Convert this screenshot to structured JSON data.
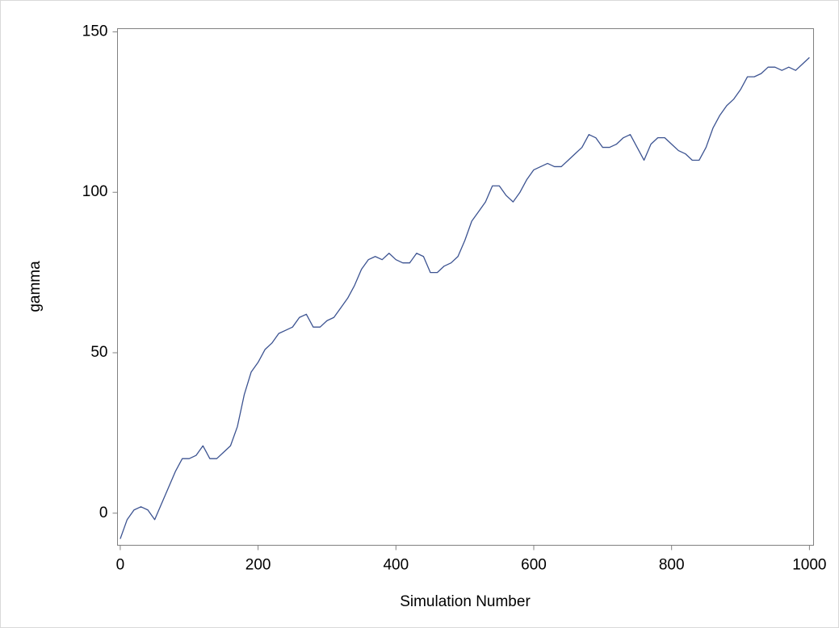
{
  "chart_data": {
    "type": "line",
    "x_label": "Simulation Number",
    "y_label": "gamma",
    "x": [
      0,
      10,
      20,
      30,
      40,
      50,
      60,
      70,
      80,
      90,
      100,
      110,
      120,
      130,
      140,
      150,
      160,
      170,
      180,
      190,
      200,
      210,
      220,
      230,
      240,
      250,
      260,
      270,
      280,
      290,
      300,
      310,
      320,
      330,
      340,
      350,
      360,
      370,
      380,
      390,
      400,
      410,
      420,
      430,
      440,
      450,
      460,
      470,
      480,
      490,
      500,
      510,
      520,
      530,
      540,
      550,
      560,
      570,
      580,
      590,
      600,
      610,
      620,
      630,
      640,
      650,
      660,
      670,
      680,
      690,
      700,
      710,
      720,
      730,
      740,
      750,
      760,
      770,
      780,
      790,
      800,
      810,
      820,
      830,
      840,
      850,
      860,
      870,
      880,
      890,
      900,
      910,
      920,
      930,
      940,
      950,
      960,
      970,
      980,
      990,
      1000
    ],
    "values": [
      -8,
      -2,
      1,
      2,
      1,
      -2,
      3,
      8,
      13,
      17,
      17,
      18,
      21,
      17,
      17,
      19,
      21,
      27,
      37,
      44,
      47,
      51,
      53,
      56,
      57,
      58,
      61,
      62,
      58,
      58,
      60,
      61,
      64,
      67,
      71,
      76,
      79,
      80,
      79,
      81,
      79,
      78,
      78,
      81,
      80,
      75,
      75,
      77,
      78,
      80,
      85,
      91,
      94,
      97,
      102,
      102,
      99,
      97,
      100,
      104,
      107,
      108,
      109,
      108,
      108,
      110,
      112,
      114,
      118,
      117,
      114,
      114,
      115,
      117,
      118,
      114,
      110,
      115,
      117,
      117,
      115,
      113,
      112,
      110,
      110,
      114,
      120,
      124,
      127,
      129,
      132,
      136,
      136,
      137,
      139,
      139,
      138,
      139,
      138,
      140,
      142
    ],
    "color": "#3c5391",
    "xlim": [
      -4,
      1006
    ],
    "ylim": [
      -10,
      151
    ],
    "xticks": [
      0,
      200,
      400,
      600,
      800,
      1000
    ],
    "yticks": [
      0,
      50,
      100,
      150
    ],
    "grid": false
  }
}
